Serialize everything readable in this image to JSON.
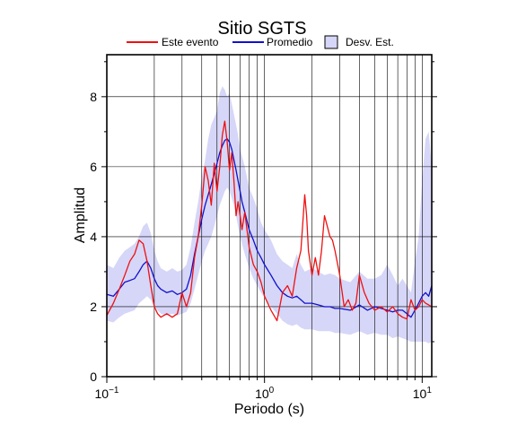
{
  "chart_data": {
    "type": "line",
    "title": "Sitio SGTS",
    "xlabel": "Periodo (s)",
    "ylabel": "Amplitud",
    "xscale": "log",
    "xlim": [
      0.1,
      11.5
    ],
    "ylim": [
      0,
      9.2
    ],
    "x_tick_labels": [
      {
        "value": 0.1,
        "base": "10",
        "exp": "−1"
      },
      {
        "value": 1,
        "base": "10",
        "exp": "0"
      },
      {
        "value": 10,
        "base": "10",
        "exp": "1"
      }
    ],
    "y_ticks": [
      0,
      2,
      4,
      6,
      8
    ],
    "y_tick_labels": [
      "0",
      "2",
      "4",
      "6",
      "8"
    ],
    "grid": true,
    "legend_position": "top",
    "colors": {
      "este_evento": "#ee1111",
      "promedio": "#1111cc",
      "desv_est": "#d6d6f8",
      "desv_est_border": "#000000"
    },
    "series": [
      {
        "name": "Este evento",
        "x": [
          0.1,
          0.11,
          0.12,
          0.13,
          0.14,
          0.15,
          0.16,
          0.17,
          0.18,
          0.19,
          0.2,
          0.21,
          0.22,
          0.24,
          0.26,
          0.28,
          0.3,
          0.32,
          0.34,
          0.36,
          0.38,
          0.4,
          0.42,
          0.44,
          0.46,
          0.48,
          0.5,
          0.52,
          0.54,
          0.56,
          0.58,
          0.6,
          0.62,
          0.64,
          0.66,
          0.68,
          0.7,
          0.72,
          0.75,
          0.8,
          0.85,
          0.9,
          0.95,
          1.0,
          1.1,
          1.2,
          1.3,
          1.4,
          1.5,
          1.6,
          1.7,
          1.8,
          1.85,
          1.9,
          2.0,
          2.1,
          2.2,
          2.3,
          2.4,
          2.5,
          2.6,
          2.7,
          2.8,
          3.0,
          3.2,
          3.4,
          3.6,
          3.8,
          4.0,
          4.3,
          4.6,
          5.0,
          5.5,
          6.0,
          6.5,
          7.0,
          7.5,
          8.0,
          8.5,
          9.0,
          9.5,
          10.0,
          10.5,
          11.0,
          11.5
        ],
        "y": [
          1.75,
          2.1,
          2.5,
          2.9,
          3.3,
          3.5,
          3.9,
          3.8,
          3.3,
          2.6,
          2.0,
          1.8,
          1.7,
          1.8,
          1.7,
          1.8,
          2.4,
          2.0,
          2.4,
          3.4,
          4.0,
          4.9,
          6.0,
          5.6,
          4.9,
          6.1,
          5.3,
          6.0,
          6.9,
          7.3,
          6.7,
          5.9,
          6.4,
          5.6,
          4.6,
          5.0,
          4.6,
          4.2,
          4.7,
          3.7,
          3.2,
          3.0,
          2.7,
          2.3,
          1.9,
          1.6,
          2.4,
          2.6,
          2.3,
          3.1,
          3.6,
          5.2,
          4.6,
          3.6,
          2.9,
          3.4,
          2.9,
          3.6,
          4.6,
          4.3,
          4.0,
          3.9,
          3.6,
          2.9,
          2.0,
          2.2,
          1.9,
          2.1,
          2.9,
          2.4,
          2.1,
          1.9,
          2.0,
          1.85,
          2.0,
          1.8,
          1.7,
          1.65,
          2.2,
          1.9,
          2.0,
          2.2,
          2.1,
          2.05,
          2.0
        ]
      },
      {
        "name": "Promedio",
        "x": [
          0.1,
          0.11,
          0.12,
          0.13,
          0.14,
          0.15,
          0.16,
          0.17,
          0.18,
          0.19,
          0.2,
          0.21,
          0.22,
          0.24,
          0.26,
          0.28,
          0.3,
          0.32,
          0.34,
          0.36,
          0.38,
          0.4,
          0.42,
          0.44,
          0.46,
          0.48,
          0.5,
          0.52,
          0.54,
          0.56,
          0.58,
          0.6,
          0.62,
          0.64,
          0.66,
          0.68,
          0.7,
          0.72,
          0.75,
          0.8,
          0.85,
          0.9,
          0.95,
          1.0,
          1.1,
          1.2,
          1.3,
          1.4,
          1.5,
          1.6,
          1.7,
          1.8,
          2.0,
          2.2,
          2.4,
          2.6,
          2.8,
          3.0,
          3.5,
          4.0,
          4.5,
          5.0,
          5.5,
          6.0,
          6.5,
          7.0,
          7.5,
          8.0,
          8.5,
          9.0,
          9.5,
          10.0,
          10.5,
          11.0,
          11.5
        ],
        "y": [
          2.35,
          2.3,
          2.5,
          2.7,
          2.75,
          2.8,
          3.0,
          3.2,
          3.3,
          3.1,
          2.8,
          2.6,
          2.5,
          2.4,
          2.45,
          2.35,
          2.4,
          2.5,
          2.9,
          3.5,
          4.0,
          4.5,
          4.9,
          5.2,
          5.5,
          5.8,
          6.1,
          6.4,
          6.6,
          6.75,
          6.8,
          6.7,
          6.5,
          6.2,
          5.9,
          5.6,
          5.3,
          5.0,
          4.7,
          4.2,
          3.9,
          3.6,
          3.4,
          3.2,
          2.9,
          2.6,
          2.4,
          2.3,
          2.25,
          2.3,
          2.2,
          2.1,
          2.1,
          2.05,
          2.0,
          2.0,
          1.95,
          1.95,
          1.9,
          2.05,
          1.9,
          2.0,
          1.95,
          1.9,
          1.85,
          1.9,
          1.9,
          1.8,
          1.7,
          1.9,
          2.1,
          2.3,
          2.4,
          2.3,
          2.6
        ]
      },
      {
        "name": "Desv. Est.",
        "x": [
          0.1,
          0.11,
          0.12,
          0.13,
          0.14,
          0.15,
          0.16,
          0.17,
          0.18,
          0.19,
          0.2,
          0.21,
          0.22,
          0.24,
          0.26,
          0.28,
          0.3,
          0.32,
          0.34,
          0.36,
          0.38,
          0.4,
          0.42,
          0.44,
          0.46,
          0.48,
          0.5,
          0.52,
          0.54,
          0.56,
          0.58,
          0.6,
          0.62,
          0.64,
          0.66,
          0.68,
          0.7,
          0.72,
          0.75,
          0.8,
          0.85,
          0.9,
          0.95,
          1.0,
          1.1,
          1.2,
          1.3,
          1.4,
          1.5,
          1.6,
          1.7,
          1.8,
          2.0,
          2.2,
          2.4,
          2.6,
          2.8,
          3.0,
          3.5,
          4.0,
          4.5,
          5.0,
          5.5,
          6.0,
          6.5,
          7.0,
          7.5,
          8.0,
          8.5,
          9.0,
          9.5,
          10.0,
          10.5,
          11.0,
          11.5
        ],
        "upper": [
          3.2,
          3.1,
          3.4,
          3.6,
          3.7,
          3.8,
          4.0,
          4.3,
          4.4,
          4.1,
          3.6,
          3.3,
          3.1,
          3.0,
          3.1,
          3.0,
          3.05,
          3.2,
          3.7,
          4.4,
          5.0,
          5.7,
          6.2,
          6.8,
          7.2,
          7.4,
          7.6,
          8.1,
          8.3,
          8.2,
          8.0,
          8.1,
          7.8,
          7.5,
          7.2,
          6.9,
          6.5,
          6.3,
          6.0,
          5.4,
          5.1,
          4.8,
          4.4,
          4.2,
          3.9,
          3.5,
          3.3,
          3.2,
          3.1,
          3.5,
          3.2,
          3.0,
          3.1,
          3.0,
          2.9,
          2.95,
          2.9,
          2.8,
          2.7,
          3.0,
          2.8,
          2.8,
          2.9,
          3.2,
          2.9,
          2.6,
          2.8,
          2.6,
          2.4,
          3.3,
          4.0,
          5.6,
          6.8,
          7.0,
          6.0
        ],
        "lower": [
          1.6,
          1.55,
          1.7,
          1.8,
          1.85,
          1.9,
          2.1,
          2.2,
          2.3,
          2.2,
          2.0,
          1.9,
          1.8,
          1.75,
          1.8,
          1.75,
          1.8,
          1.85,
          2.1,
          2.5,
          2.9,
          3.3,
          3.6,
          3.8,
          4.0,
          4.3,
          4.6,
          4.9,
          5.1,
          5.3,
          5.4,
          5.3,
          5.1,
          4.9,
          4.6,
          4.3,
          4.0,
          3.8,
          3.5,
          3.1,
          2.8,
          2.6,
          2.4,
          2.25,
          2.0,
          1.8,
          1.6,
          1.5,
          1.45,
          1.5,
          1.4,
          1.35,
          1.35,
          1.3,
          1.3,
          1.3,
          1.25,
          1.25,
          1.2,
          1.3,
          1.2,
          1.25,
          1.2,
          1.2,
          1.1,
          1.15,
          1.1,
          1.05,
          1.0,
          1.0,
          1.0,
          1.0,
          1.0,
          0.95,
          1.0
        ]
      }
    ]
  }
}
